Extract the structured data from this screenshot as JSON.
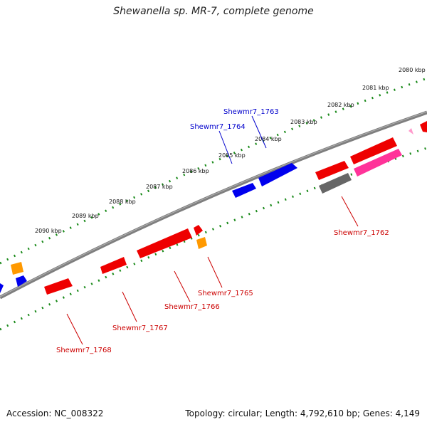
{
  "title": "Shewanella sp. MR-7, complete genome",
  "footer": {
    "accession": "Accession: NC_008322",
    "summary": "Topology: circular; Length: 4,792,610 bp; Genes: 4,149"
  },
  "colors": {
    "backbone": "#7f7f7f",
    "tick_track": "#1a8a1a",
    "gene_red": "#ee0000",
    "gene_blue": "#0000ee",
    "gene_orange": "#ff9900",
    "gene_gray": "#666666",
    "gene_pink": "#ff3399",
    "label_red": "#cc0000",
    "label_blue": "#0000cc"
  },
  "kbp_labels": [
    "2080 kbp",
    "2081 kbp",
    "2082 kbp",
    "2083 kbp",
    "2084 kbp",
    "2085 kbp",
    "2086 kbp",
    "2087 kbp",
    "2088 kbp",
    "2089 kbp",
    "2090 kbp"
  ],
  "gene_labels": [
    {
      "text": "Shewmr7_1763",
      "color": "blue"
    },
    {
      "text": "Shewmr7_1764",
      "color": "blue"
    },
    {
      "text": "Shewmr7_1762",
      "color": "red"
    },
    {
      "text": "Shewmr7_1765",
      "color": "red"
    },
    {
      "text": "Shewmr7_1766",
      "color": "red"
    },
    {
      "text": "Shewmr7_1767",
      "color": "red"
    },
    {
      "text": "Shewmr7_1768",
      "color": "red"
    }
  ]
}
